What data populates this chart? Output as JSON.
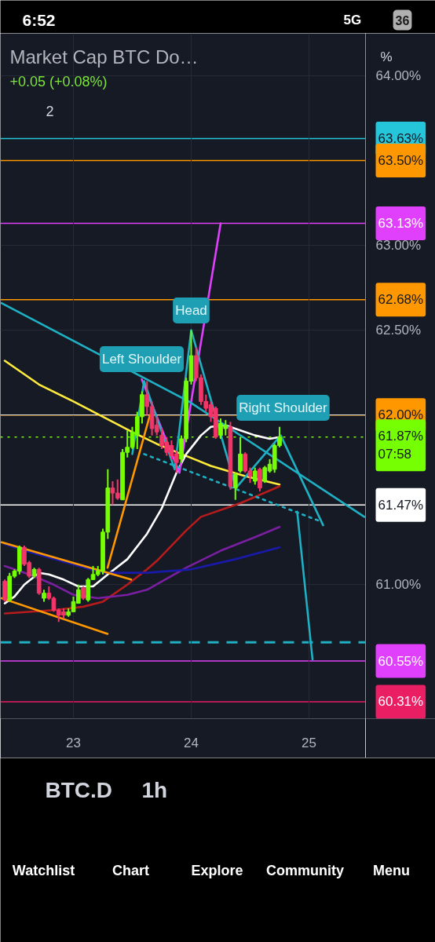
{
  "chart_data": {
    "type": "candlestick",
    "title": "Market Cap BTC Do…",
    "subtitle": "+0.05 (+0.08%)",
    "x": [
      22.417,
      22.458,
      22.5,
      22.542,
      22.583,
      22.625,
      22.667,
      22.708,
      22.75,
      22.792,
      22.833,
      22.875,
      22.917,
      22.958,
      23,
      23.042,
      23.083,
      23.125,
      23.167,
      23.208,
      23.25,
      23.292,
      23.333,
      23.375,
      23.417,
      23.458,
      23.5,
      23.542,
      23.583,
      23.625,
      23.667,
      23.708,
      23.75,
      23.792,
      23.833,
      23.875,
      23.917,
      23.958,
      24,
      24.042,
      24.083,
      24.125,
      24.167,
      24.208,
      24.25,
      24.292,
      24.333,
      24.375,
      24.417,
      24.458,
      24.5,
      24.542,
      24.583,
      24.625,
      24.667,
      24.708,
      24.75
    ],
    "ohlc": [
      [
        61.02,
        61.03,
        60.9,
        60.91
      ],
      [
        60.91,
        61.07,
        60.9,
        61.05
      ],
      [
        61.05,
        61.09,
        61.04,
        61.08
      ],
      [
        61.08,
        61.23,
        61.06,
        61.22
      ],
      [
        61.22,
        61.23,
        61.11,
        61.12
      ],
      [
        61.13,
        61.14,
        61.04,
        61.05
      ],
      [
        61.05,
        61.1,
        61.04,
        61.09
      ],
      [
        61.09,
        61.1,
        60.94,
        60.95
      ],
      [
        60.92,
        60.97,
        60.9,
        60.95
      ],
      [
        60.95,
        60.99,
        60.91,
        60.92
      ],
      [
        60.92,
        60.93,
        60.84,
        60.85
      ],
      [
        60.85,
        60.86,
        60.78,
        60.82
      ],
      [
        60.84,
        60.86,
        60.8,
        60.82
      ],
      [
        60.82,
        60.86,
        60.81,
        60.84
      ],
      [
        60.84,
        60.93,
        60.84,
        60.9
      ],
      [
        60.89,
        61.0,
        60.89,
        60.97
      ],
      [
        60.98,
        60.99,
        60.91,
        60.92
      ],
      [
        60.91,
        61.04,
        60.9,
        61.03
      ],
      [
        61.03,
        61.11,
        61.03,
        61.06
      ],
      [
        61.06,
        61.11,
        61.05,
        61.08
      ],
      [
        61.08,
        61.33,
        61.06,
        61.31
      ],
      [
        61.31,
        61.68,
        61.27,
        61.57
      ],
      [
        61.57,
        61.61,
        61.47,
        61.54
      ],
      [
        61.54,
        61.62,
        61.5,
        61.51
      ],
      [
        61.5,
        61.8,
        61.5,
        61.78
      ],
      [
        61.78,
        61.91,
        61.75,
        61.81
      ],
      [
        61.81,
        61.93,
        61.8,
        61.9
      ],
      [
        61.88,
        62.02,
        61.8,
        61.99
      ],
      [
        61.99,
        62.14,
        61.95,
        62.12
      ],
      [
        62.12,
        62.2,
        62.0,
        62.05
      ],
      [
        62.05,
        62.08,
        61.88,
        61.92
      ],
      [
        61.94,
        61.99,
        61.88,
        61.9
      ],
      [
        61.88,
        61.92,
        61.8,
        61.82
      ],
      [
        61.84,
        61.87,
        61.76,
        61.78
      ],
      [
        61.82,
        61.85,
        61.74,
        61.76
      ],
      [
        61.77,
        61.79,
        61.66,
        61.72
      ],
      [
        61.74,
        61.88,
        61.72,
        61.86
      ],
      [
        61.86,
        62.22,
        61.84,
        62.2
      ],
      [
        62.2,
        62.5,
        62.18,
        62.35
      ],
      [
        62.35,
        62.4,
        62.2,
        62.22
      ],
      [
        62.22,
        62.24,
        62.06,
        62.08
      ],
      [
        62.08,
        62.12,
        62.02,
        62.04
      ],
      [
        62.06,
        62.08,
        61.96,
        61.99
      ],
      [
        62.04,
        62.05,
        61.86,
        61.87
      ],
      [
        61.88,
        61.98,
        61.86,
        61.95
      ],
      [
        61.92,
        61.97,
        61.88,
        61.94
      ],
      [
        61.93,
        61.96,
        61.56,
        61.58
      ],
      [
        61.57,
        61.66,
        61.5,
        61.65
      ],
      [
        61.67,
        61.87,
        61.66,
        61.77
      ],
      [
        61.77,
        61.78,
        61.66,
        61.67
      ],
      [
        61.67,
        61.69,
        61.6,
        61.64
      ],
      [
        61.61,
        61.69,
        61.59,
        61.67
      ],
      [
        61.68,
        61.69,
        61.55,
        61.57
      ],
      [
        61.61,
        61.7,
        61.6,
        61.69
      ],
      [
        61.67,
        61.74,
        61.66,
        61.71
      ],
      [
        61.68,
        61.83,
        61.66,
        61.82
      ],
      [
        61.82,
        61.93,
        61.81,
        61.87
      ]
    ],
    "colors": [
      "#f23669",
      "#76ff03",
      "#76ff03",
      "#76ff03",
      "#f23669",
      "#f23669",
      "#76ff03",
      "#f23669",
      "#76ff03",
      "#f23669",
      "#f23669",
      "#f23669",
      "#f23669",
      "#76ff03",
      "#76ff03",
      "#76ff03",
      "#f23669",
      "#76ff03",
      "#76ff03",
      "#76ff03",
      "#76ff03",
      "#76ff03",
      "#f23669",
      "#f23669",
      "#76ff03",
      "#76ff03",
      "#76ff03",
      "#76ff03",
      "#76ff03",
      "#f23669",
      "#f23669",
      "#f23669",
      "#f23669",
      "#f23669",
      "#f23669",
      "#f23669",
      "#76ff03",
      "#76ff03",
      "#76ff03",
      "#f23669",
      "#f23669",
      "#f23669",
      "#f23669",
      "#f23669",
      "#76ff03",
      "#76ff03",
      "#f23669",
      "#76ff03",
      "#76ff03",
      "#f23669",
      "#f23669",
      "#76ff03",
      "#f23669",
      "#76ff03",
      "#76ff03",
      "#76ff03",
      "#76ff03"
    ],
    "series": [
      {
        "type": "line",
        "color": "#ffeb3b",
        "x": [
          22.417,
          22.708,
          23,
          23.25,
          23.5,
          23.708,
          23.917,
          24.167,
          24.458,
          24.75
        ],
        "values": [
          62.32,
          62.18,
          62.08,
          61.99,
          61.9,
          61.83,
          61.77,
          61.7,
          61.64,
          61.59
        ]
      },
      {
        "type": "line",
        "color": "#ffffff",
        "x": [
          22.417,
          22.5,
          22.583,
          22.708,
          22.792,
          22.917,
          23.042,
          23.167,
          23.292,
          23.458,
          23.625,
          23.75,
          23.875,
          23.958,
          24.083,
          24.167,
          24.292,
          24.417,
          24.542,
          24.667,
          24.75
        ],
        "values": [
          60.89,
          60.93,
          61.0,
          61.07,
          61.06,
          61.03,
          60.99,
          60.99,
          61.06,
          61.15,
          61.3,
          61.45,
          61.66,
          61.77,
          61.88,
          61.93,
          61.94,
          61.91,
          61.88,
          61.86,
          61.87
        ]
      },
      {
        "type": "line",
        "color": "#b71c1c",
        "x": [
          22.417,
          22.833,
          23.083,
          23.25,
          23.458,
          23.625,
          23.708,
          23.958,
          24.083,
          24.417,
          24.75
        ],
        "values": [
          60.83,
          60.85,
          60.87,
          60.9,
          61.0,
          61.09,
          61.14,
          61.32,
          61.4,
          61.48,
          61.58
        ]
      },
      {
        "type": "line",
        "color": "#7b1fa2",
        "x": [
          22.417,
          22.625,
          22.833,
          23,
          23.208,
          23.458,
          23.625,
          23.958,
          24.25,
          24.542,
          24.75
        ],
        "values": [
          61.11,
          61.06,
          61.0,
          60.94,
          60.92,
          60.94,
          60.97,
          61.1,
          61.2,
          61.28,
          61.34
        ]
      },
      {
        "type": "line",
        "color": "#1a1aa8",
        "x": [
          22.417,
          22.542,
          23.25,
          23.625,
          24,
          24.375,
          24.75
        ],
        "values": [
          61.24,
          61.21,
          61.07,
          61.07,
          61.09,
          61.15,
          61.22
        ]
      },
      {
        "type": "line",
        "color": "#ff9800",
        "x": [
          22.39,
          23.49
        ],
        "values": [
          61.25,
          61.03
        ]
      },
      {
        "type": "line",
        "color": "#ff9800",
        "x": [
          22.39,
          23.29
        ],
        "values": [
          60.92,
          60.71
        ]
      },
      {
        "type": "line",
        "color": "#ff9800",
        "x": [
          23.29,
          23.65
        ],
        "values": [
          61.1,
          62.0
        ]
      },
      {
        "type": "line",
        "color": "#e040fb",
        "x": [
          23.58,
          23.9,
          24.25
        ],
        "values": [
          62.21,
          61.66,
          63.13
        ]
      },
      {
        "type": "line",
        "color": "#1fb0c4",
        "x": [
          22.39,
          23.98,
          25.47
        ],
        "values": [
          62.66,
          62.08,
          61.4
        ]
      },
      {
        "type": "line",
        "color": "#1fb0c4",
        "x": [
          23.5,
          23.6,
          23.86,
          24,
          24.38,
          24.76,
          25.12
        ],
        "values": [
          61.77,
          62.2,
          61.68,
          62.5,
          61.57,
          61.88,
          61.35
        ]
      },
      {
        "type": "line",
        "color": "#1fb0c4",
        "line_style": "dotted",
        "x": [
          23.6,
          25.11
        ],
        "values": [
          61.77,
          61.37
        ]
      },
      {
        "type": "line",
        "color": "#1fb0c4",
        "x": [
          24.9,
          25.03
        ],
        "values": [
          61.43,
          60.56
        ]
      }
    ],
    "xlim": [
      22.38,
      25.48
    ],
    "xticks": [
      23,
      24,
      25
    ],
    "ylim": [
      60.21,
      64.25
    ],
    "yticks": [
      {
        "value": 64,
        "label": "64.00%"
      },
      {
        "value": 63,
        "label": "63.00%"
      },
      {
        "value": 62.5,
        "label": "62.50%"
      },
      {
        "value": 61,
        "label": "61.00%"
      }
    ],
    "grid": true,
    "ref_lines": [
      {
        "axis": "y",
        "value": 63.63,
        "label": "63.63%",
        "color": "#26c6da"
      },
      {
        "axis": "y",
        "value": 63.5,
        "label": "63.50%",
        "color": "#ff9800"
      },
      {
        "axis": "y",
        "value": 63.13,
        "label": "63.13%",
        "color": "#e040fb"
      },
      {
        "axis": "y",
        "value": 62.68,
        "label": "62.68%",
        "color": "#ff9800"
      },
      {
        "axis": "y",
        "value": 62.0,
        "label": "62.00%",
        "color": "#ff9800"
      },
      {
        "axis": "y",
        "value": 61.87,
        "label": "61.87%\n07:58",
        "color": "#76ff03",
        "line_style": "dotted"
      },
      {
        "axis": "y",
        "value": 61.47,
        "label": "61.47%",
        "color": "#ffffff"
      },
      {
        "axis": "y",
        "value": 60.66,
        "color": "#1fb0c4",
        "line_style": "dashed"
      },
      {
        "axis": "y",
        "value": 60.55,
        "label": "60.55%",
        "color": "#e040fb"
      },
      {
        "axis": "y",
        "value": 60.31,
        "label": "60.31%",
        "color": "#e91e63"
      }
    ],
    "annotations": [
      "Left Shoulder",
      "Head",
      "Right Shoulder",
      "6:52",
      "5G",
      "36",
      "2",
      "%",
      "BTC.D",
      "1h",
      "Watchlist",
      "Chart",
      "Explore",
      "Community",
      "Menu"
    ]
  }
}
